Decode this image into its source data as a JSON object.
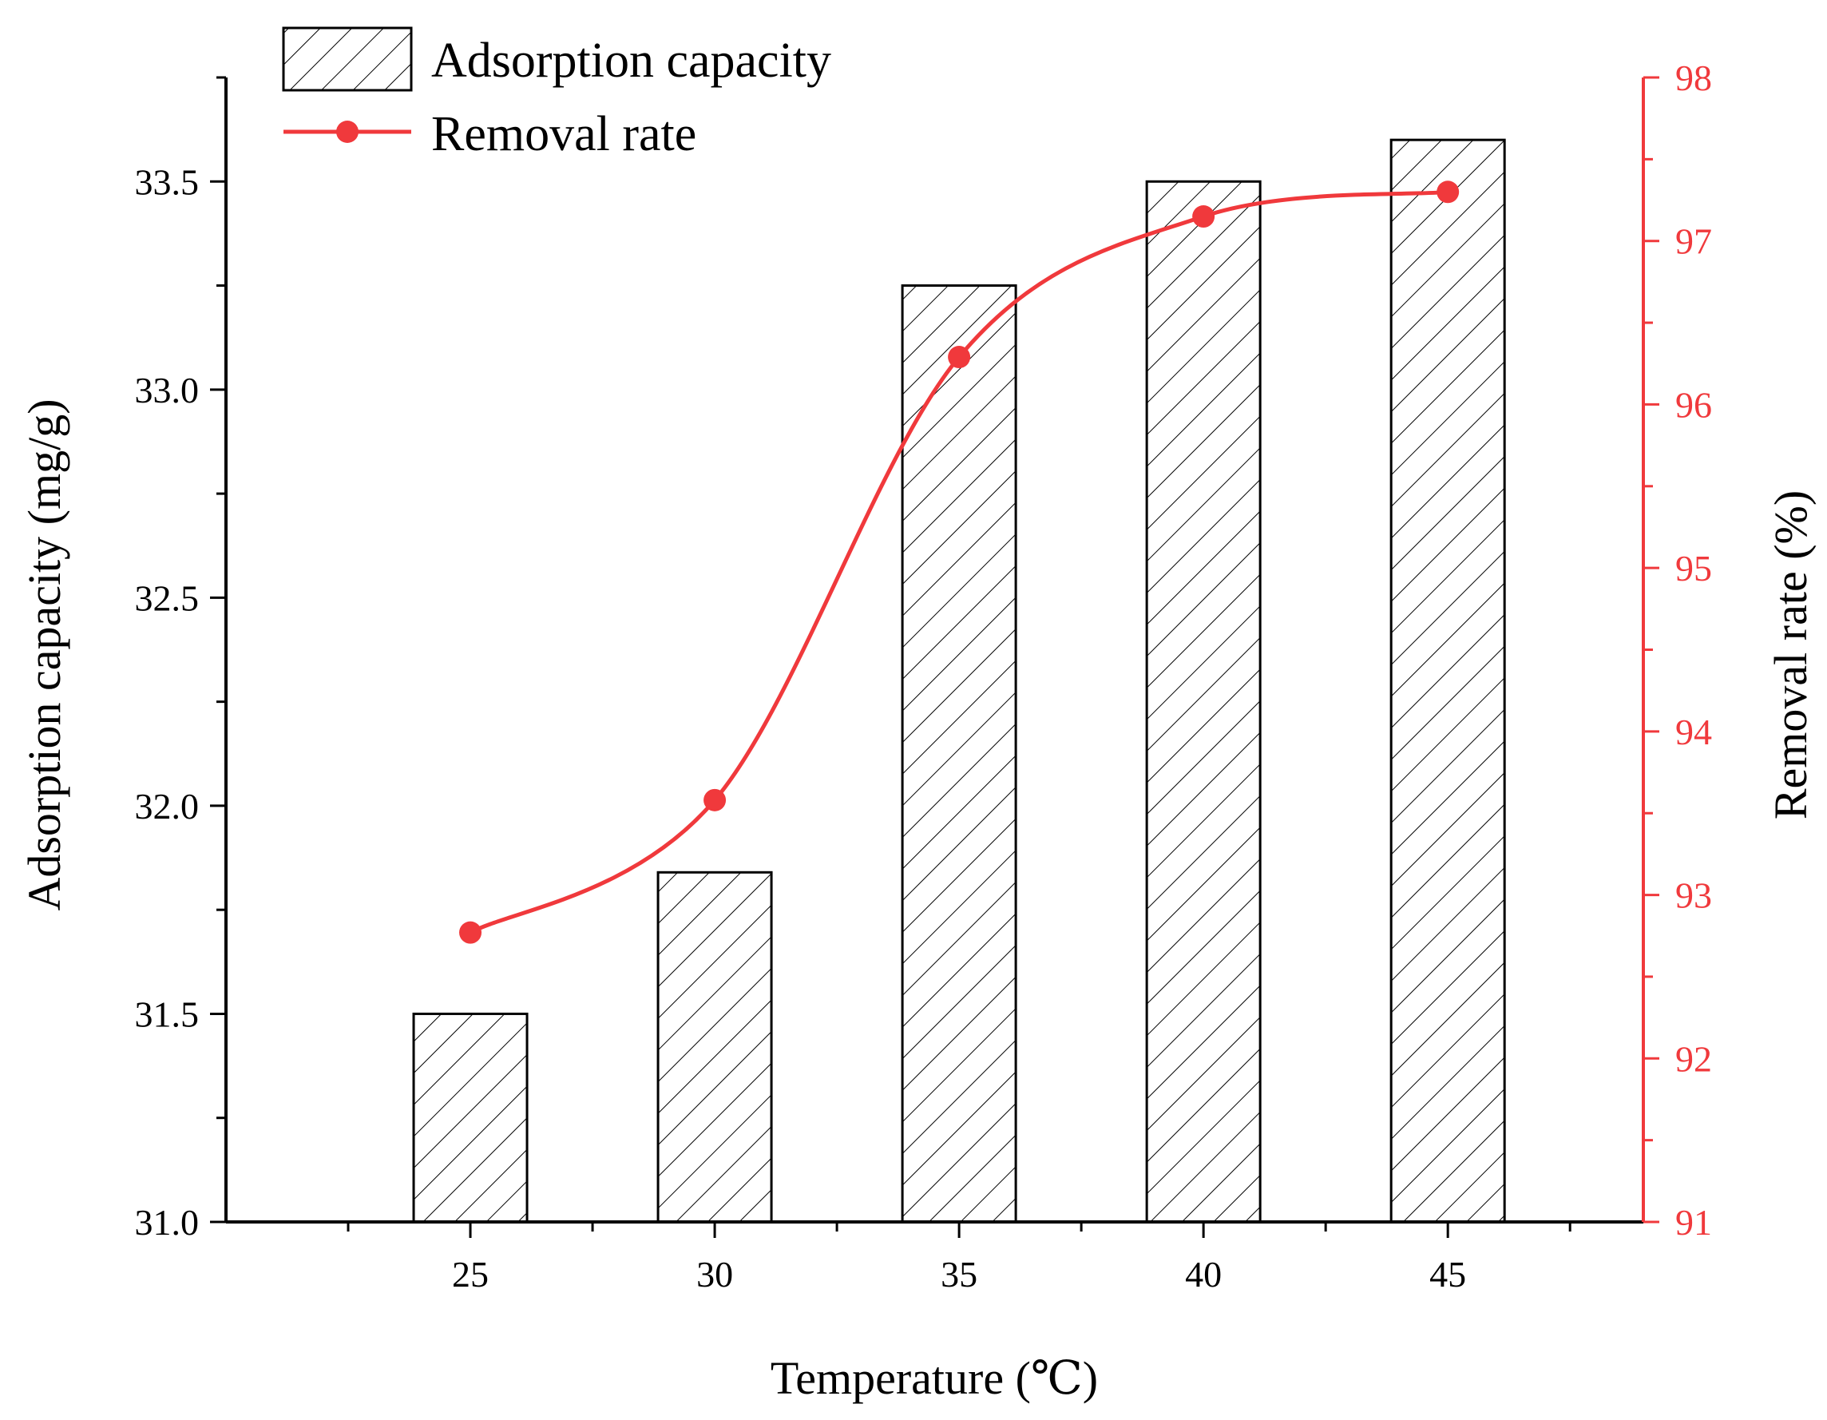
{
  "chart_data": {
    "type": "bar+line",
    "x": [
      25,
      30,
      35,
      40,
      45
    ],
    "categories": [
      "25",
      "30",
      "35",
      "40",
      "45"
    ],
    "series": [
      {
        "name": "Adsorption capacity",
        "type": "bar",
        "axis": "left",
        "pattern": "hatched",
        "values": [
          31.5,
          31.84,
          33.25,
          33.5,
          33.6
        ]
      },
      {
        "name": "Removal rate",
        "type": "line",
        "axis": "right",
        "smooth": true,
        "marker": "circle",
        "values": [
          92.77,
          93.58,
          96.29,
          97.15,
          97.3
        ]
      }
    ],
    "xlabel": "Temperature (℃)",
    "ylabel": "Adsorption capacity (mg/g)",
    "y2label": "Removal rate (%)",
    "xlim": [
      20,
      49
    ],
    "ylim": [
      31.0,
      33.75
    ],
    "y2lim": [
      91,
      98
    ],
    "yticks": [
      "31.0",
      "31.5",
      "32.0",
      "32.5",
      "33.0",
      "33.5"
    ],
    "y2ticks": [
      "91",
      "92",
      "93",
      "94",
      "95",
      "96",
      "97",
      "98"
    ],
    "legend": {
      "placement": "top-left",
      "entries": [
        "Adsorption capacity",
        "Removal rate"
      ]
    },
    "colors": {
      "bar_edge": "#000000",
      "line": "#f0393c",
      "marker": "#f0393c",
      "right_axis": "#f0393c",
      "left_axis": "#000000"
    }
  }
}
